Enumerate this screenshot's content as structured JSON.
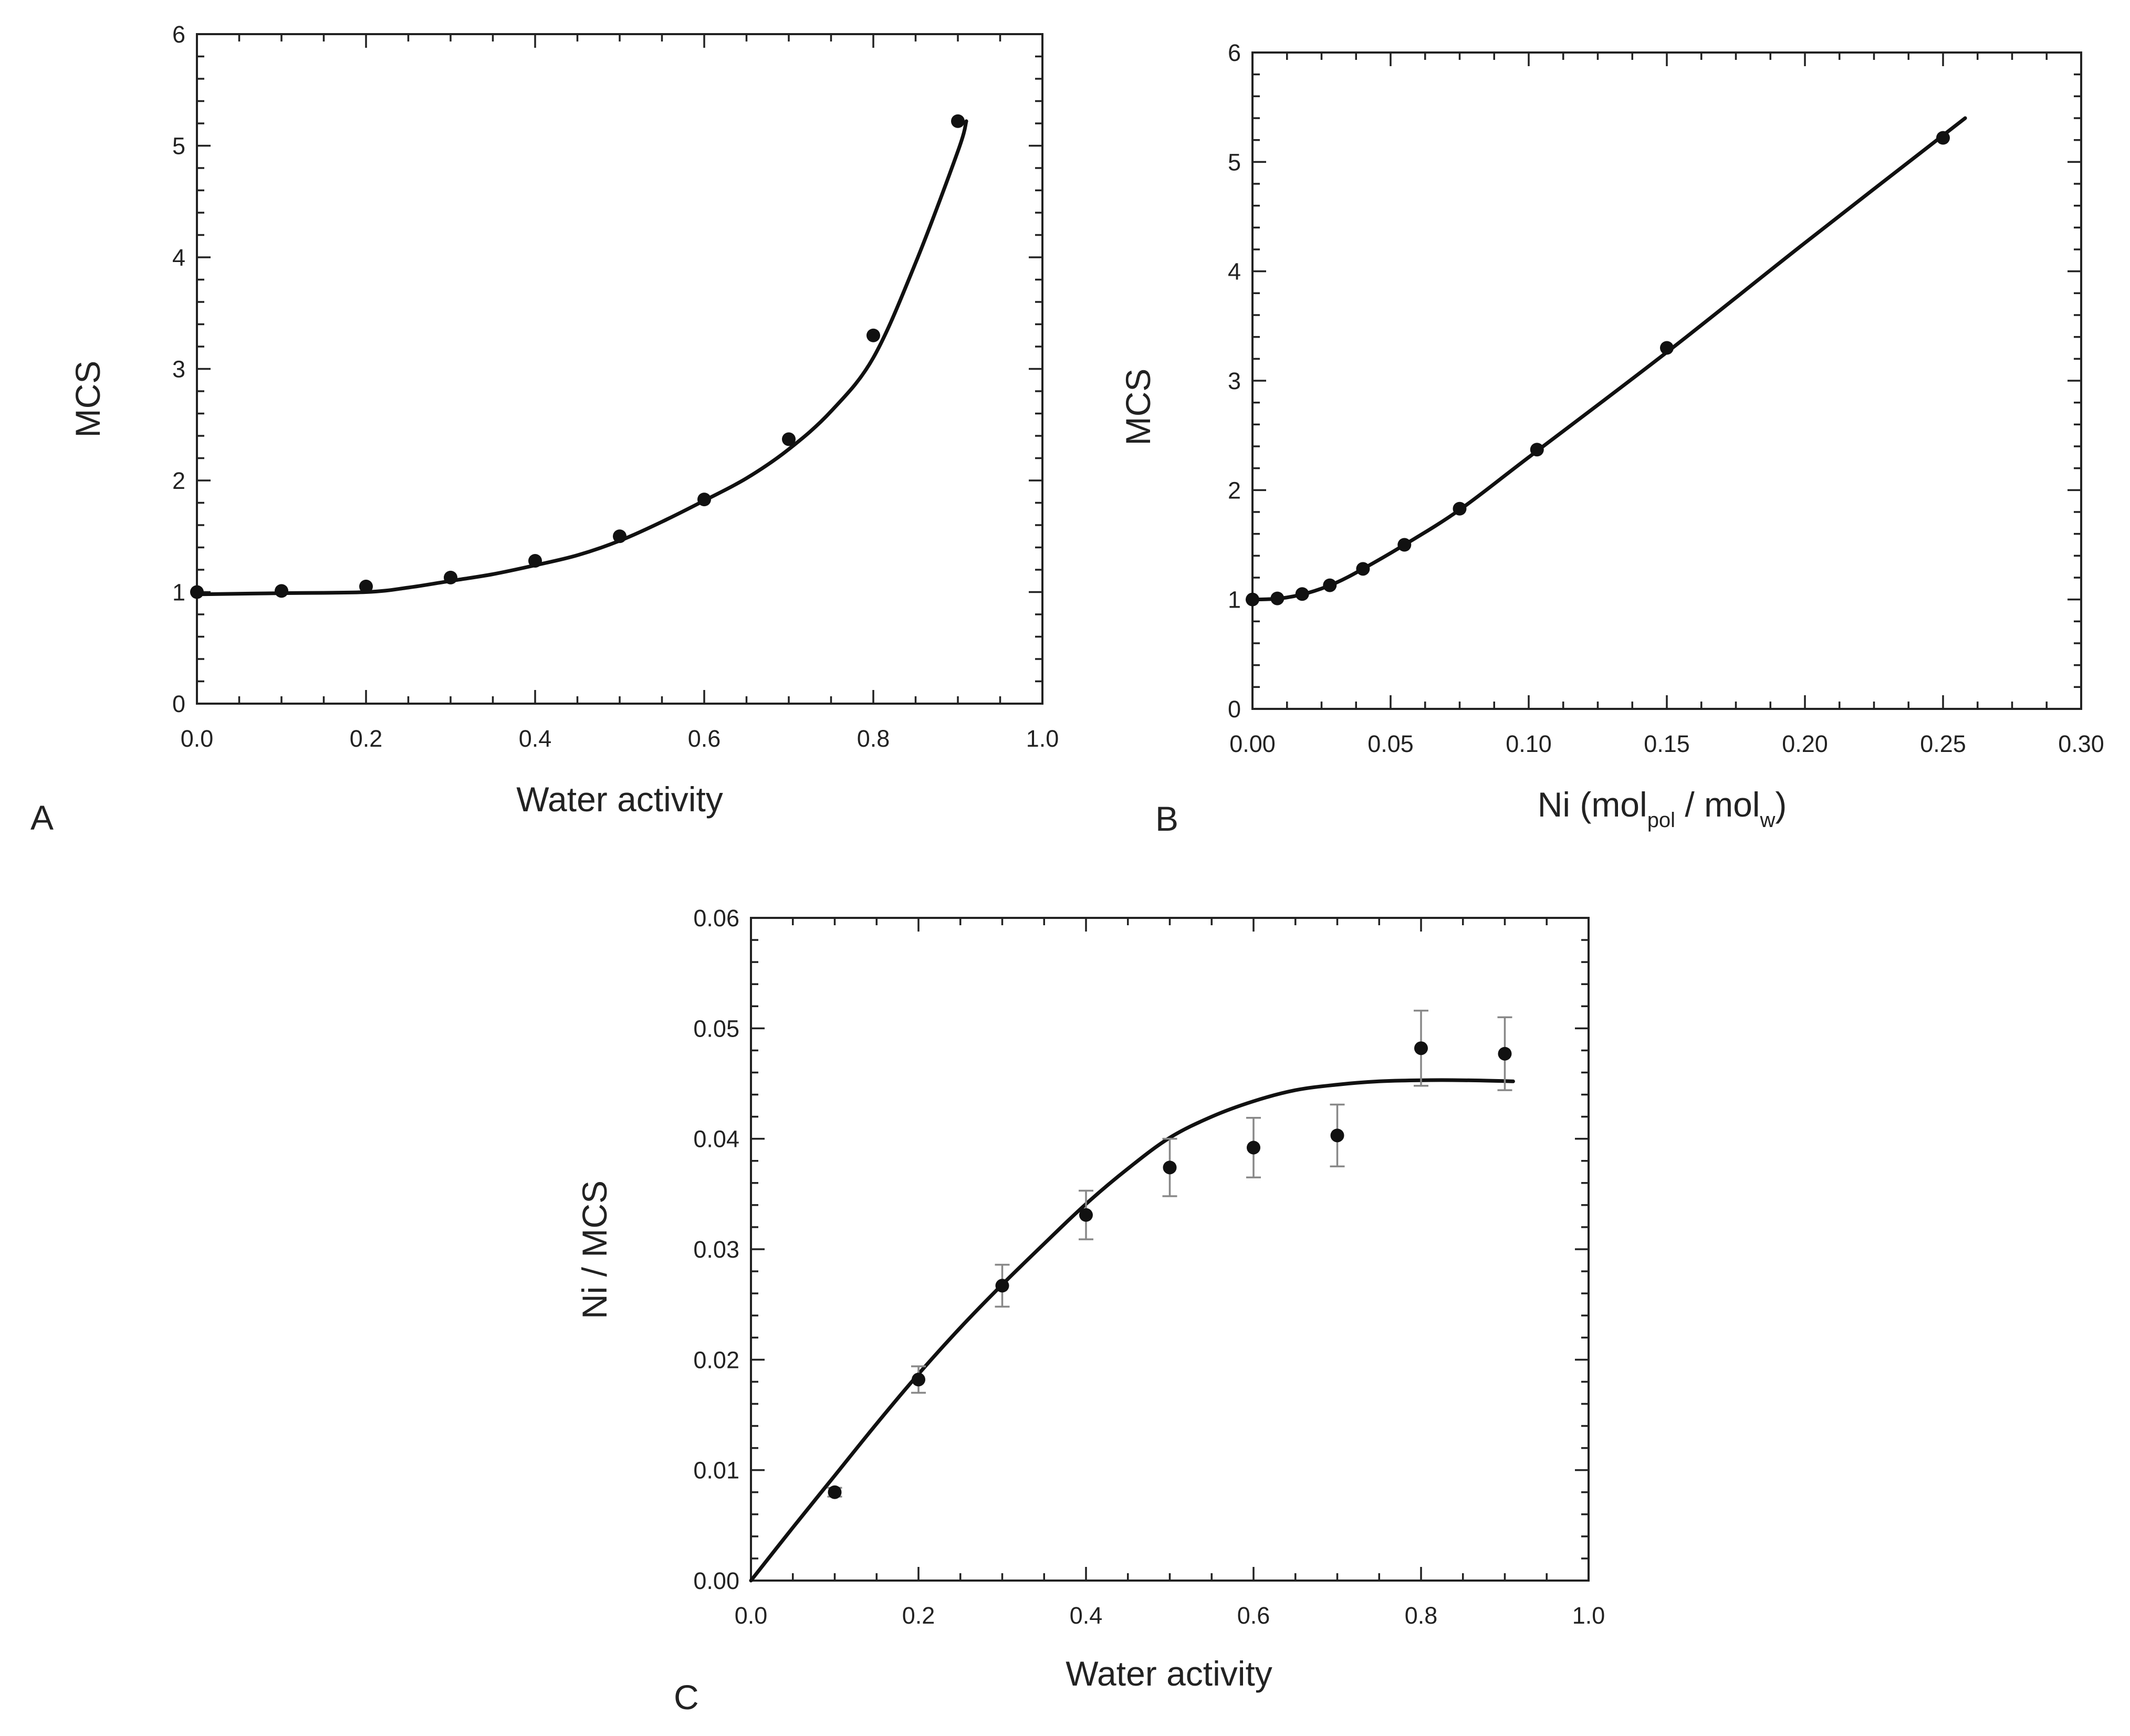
{
  "chart_data": [
    {
      "panel": "A",
      "type": "scatter",
      "xlabel": "Water activity",
      "ylabel": "MCS",
      "xlim": [
        0,
        1.0
      ],
      "ylim": [
        0,
        6
      ],
      "x_ticks": [
        "0.0",
        "0.2",
        "0.4",
        "0.6",
        "0.8",
        "1.0"
      ],
      "y_ticks": [
        "0",
        "1",
        "2",
        "3",
        "4",
        "5",
        "6"
      ],
      "points": {
        "x": [
          0.0,
          0.1,
          0.2,
          0.3,
          0.4,
          0.5,
          0.6,
          0.7,
          0.8,
          0.9
        ],
        "y": [
          1.0,
          1.01,
          1.05,
          1.13,
          1.28,
          1.5,
          1.83,
          2.37,
          3.3,
          5.22
        ]
      },
      "fit": {
        "x": [
          0.0,
          0.1,
          0.2,
          0.25,
          0.3,
          0.35,
          0.4,
          0.45,
          0.5,
          0.55,
          0.6,
          0.65,
          0.7,
          0.75,
          0.8,
          0.85,
          0.9,
          0.91
        ],
        "y": [
          0.98,
          0.99,
          1.0,
          1.04,
          1.1,
          1.16,
          1.24,
          1.33,
          1.46,
          1.63,
          1.82,
          2.02,
          2.28,
          2.62,
          3.1,
          3.95,
          4.95,
          5.22
        ]
      }
    },
    {
      "panel": "B",
      "type": "scatter",
      "xlabel_main": "Ni (mol",
      "xlabel_sub1": "pol",
      "xlabel_mid": " / mol",
      "xlabel_sub2": "w",
      "xlabel_end": ")",
      "ylabel": "MCS",
      "xlim": [
        0,
        0.3
      ],
      "ylim": [
        0,
        6
      ],
      "x_ticks": [
        "0.00",
        "0.05",
        "0.10",
        "0.15",
        "0.20",
        "0.25",
        "0.30"
      ],
      "y_ticks": [
        "0",
        "1",
        "2",
        "3",
        "4",
        "5",
        "6"
      ],
      "points": {
        "x": [
          0.0,
          0.009,
          0.018,
          0.028,
          0.04,
          0.055,
          0.075,
          0.103,
          0.15,
          0.25
        ],
        "y": [
          1.0,
          1.01,
          1.05,
          1.13,
          1.28,
          1.5,
          1.83,
          2.37,
          3.3,
          5.22
        ]
      },
      "fit": {
        "x": [
          0.0,
          0.01,
          0.02,
          0.03,
          0.04,
          0.055,
          0.075,
          0.1,
          0.15,
          0.2,
          0.258
        ],
        "y": [
          1.0,
          1.01,
          1.06,
          1.15,
          1.28,
          1.5,
          1.82,
          2.3,
          3.26,
          4.26,
          5.4
        ]
      }
    },
    {
      "panel": "C",
      "type": "scatter",
      "xlabel": "Water activity",
      "ylabel": "Ni / MCS",
      "xlim": [
        0,
        1.0
      ],
      "ylim": [
        0,
        0.06
      ],
      "x_ticks": [
        "0.0",
        "0.2",
        "0.4",
        "0.6",
        "0.8",
        "1.0"
      ],
      "y_ticks": [
        "0.00",
        "0.01",
        "0.02",
        "0.03",
        "0.04",
        "0.05",
        "0.06"
      ],
      "points": {
        "x": [
          0.1,
          0.2,
          0.3,
          0.4,
          0.5,
          0.6,
          0.7,
          0.8,
          0.9
        ],
        "y": [
          0.008,
          0.0182,
          0.0267,
          0.0331,
          0.0374,
          0.0392,
          0.0403,
          0.0482,
          0.0477
        ],
        "err": [
          0.0004,
          0.0012,
          0.0019,
          0.0022,
          0.0026,
          0.0027,
          0.0028,
          0.0034,
          0.0033
        ]
      },
      "fit": {
        "x": [
          0.0,
          0.05,
          0.1,
          0.15,
          0.2,
          0.25,
          0.3,
          0.35,
          0.4,
          0.45,
          0.5,
          0.55,
          0.6,
          0.65,
          0.7,
          0.75,
          0.8,
          0.85,
          0.91
        ],
        "y": [
          0.0,
          0.0048,
          0.0095,
          0.0142,
          0.0187,
          0.0229,
          0.0268,
          0.0305,
          0.0341,
          0.0373,
          0.0401,
          0.042,
          0.0434,
          0.0444,
          0.0449,
          0.0452,
          0.0453,
          0.0453,
          0.0452
        ]
      }
    }
  ]
}
